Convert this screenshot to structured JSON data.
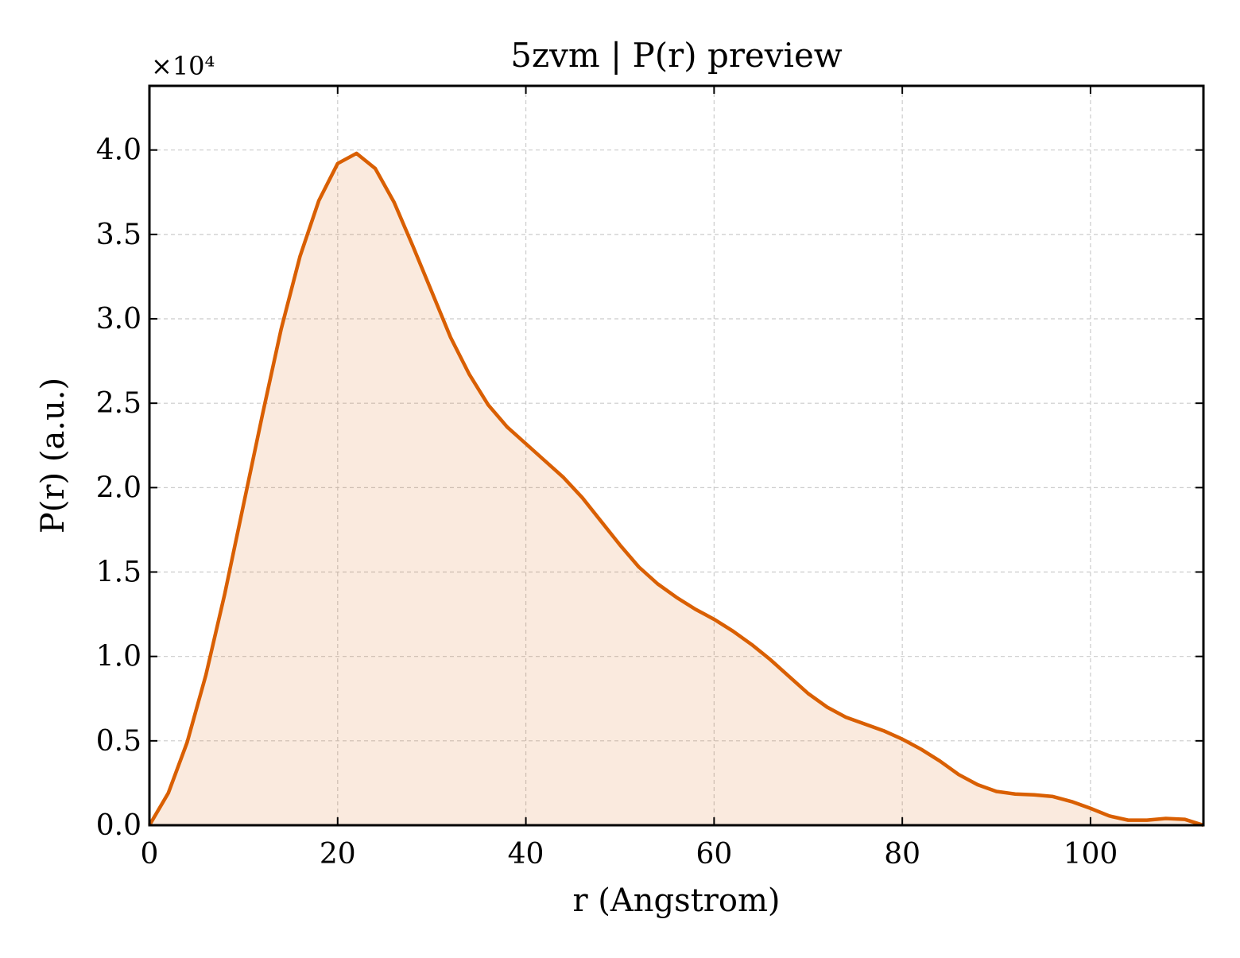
{
  "chart_data": {
    "type": "area",
    "title": "5zvm | P(r) preview",
    "xlabel": "r (Angstrom)",
    "ylabel": "P(r) (a.u.)",
    "y_scale_label": "×10⁴",
    "y_multiplier": 10000,
    "xlim": [
      0,
      112
    ],
    "ylim": [
      0,
      4.38
    ],
    "xticks": [
      0,
      20,
      40,
      60,
      80,
      100
    ],
    "xtick_labels": [
      "0",
      "20",
      "40",
      "60",
      "80",
      "100"
    ],
    "yticks": [
      0,
      0.5,
      1.0,
      1.5,
      2.0,
      2.5,
      3.0,
      3.5,
      4.0
    ],
    "ytick_labels": [
      "0.0",
      "0.5",
      "1.0",
      "1.5",
      "2.0",
      "2.5",
      "3.0",
      "3.5",
      "4.0"
    ],
    "grid": true,
    "colors": {
      "line": "#d95f02",
      "fill": "#d95f02",
      "grid": "#cccccc"
    },
    "series": [
      {
        "x": [
          0,
          2,
          4,
          6,
          8,
          10,
          12,
          14,
          16,
          18,
          20,
          22,
          24,
          26,
          28,
          30,
          32,
          34,
          36,
          38,
          40,
          42,
          44,
          46,
          48,
          50,
          52,
          54,
          56,
          58,
          60,
          62,
          64,
          66,
          68,
          70,
          72,
          74,
          76,
          78,
          80,
          82,
          84,
          86,
          88,
          90,
          92,
          94,
          96,
          98,
          100,
          102,
          104,
          106,
          108,
          110,
          112
        ],
        "values": [
          0.0,
          0.19,
          0.49,
          0.89,
          1.37,
          1.9,
          2.43,
          2.94,
          3.37,
          3.7,
          3.92,
          3.98,
          3.89,
          3.69,
          3.43,
          3.16,
          2.89,
          2.67,
          2.49,
          2.36,
          2.26,
          2.16,
          2.06,
          1.94,
          1.8,
          1.66,
          1.53,
          1.43,
          1.35,
          1.28,
          1.22,
          1.15,
          1.07,
          0.98,
          0.88,
          0.78,
          0.7,
          0.64,
          0.6,
          0.56,
          0.51,
          0.45,
          0.38,
          0.3,
          0.24,
          0.2,
          0.185,
          0.18,
          0.17,
          0.14,
          0.1,
          0.055,
          0.03,
          0.03,
          0.04,
          0.035,
          0.0
        ]
      }
    ]
  }
}
